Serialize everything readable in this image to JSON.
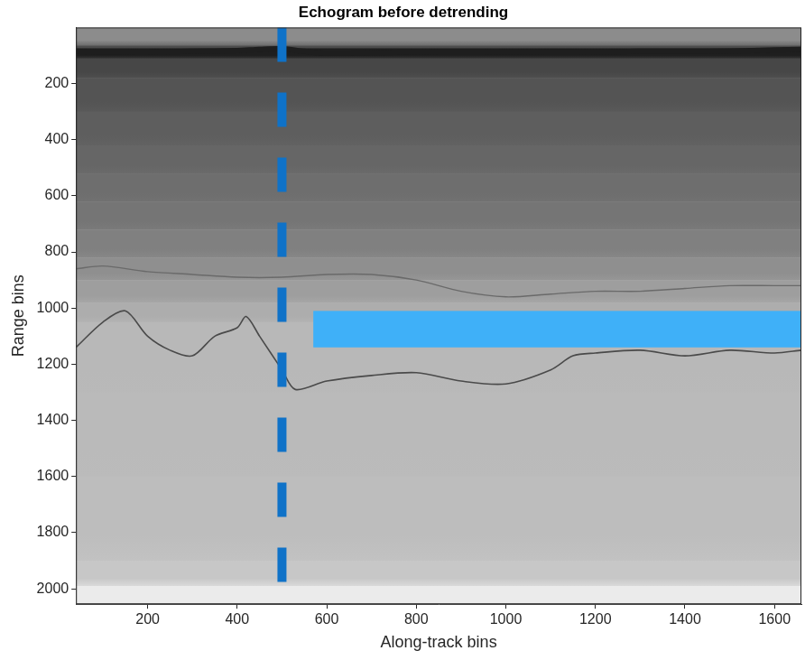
{
  "chart_data": {
    "type": "heatmap",
    "title": "Echogram before detrending",
    "x_label": "Along-track bins",
    "y_label": "Range bins",
    "xlim": [
      40,
      1660
    ],
    "ylim": [
      0,
      2055
    ],
    "xticks": [
      200,
      400,
      600,
      800,
      1000,
      1200,
      1400,
      1600
    ],
    "yticks": [
      200,
      400,
      600,
      800,
      1000,
      1200,
      1400,
      1600,
      1800,
      2000
    ],
    "grid": false,
    "band_edges": [
      0,
      65,
      75,
      110,
      180,
      300,
      420,
      520,
      620,
      720,
      820,
      900,
      980,
      1050,
      1300,
      1600,
      1900,
      1990,
      2055
    ],
    "band_intensity": [
      0.55,
      0.3,
      0.12,
      0.28,
      0.33,
      0.37,
      0.4,
      0.43,
      0.46,
      0.5,
      0.56,
      0.62,
      0.68,
      0.72,
      0.73,
      0.74,
      0.78,
      0.92
    ],
    "series": [
      {
        "color": "#1e1e1e",
        "x": [
          40,
          100,
          200,
          300,
          400,
          450,
          500,
          550,
          600,
          700,
          800,
          900,
          1000,
          1100,
          1200,
          1300,
          1400,
          1500,
          1600,
          1660
        ],
        "values": [
          85,
          88,
          87,
          85,
          82,
          78,
          76,
          85,
          92,
          90,
          88,
          87,
          88,
          86,
          87,
          85,
          85,
          84,
          80,
          78
        ]
      },
      {
        "color": "#6a6a6a",
        "x": [
          40,
          100,
          200,
          300,
          400,
          500,
          600,
          700,
          800,
          900,
          1000,
          1100,
          1200,
          1300,
          1400,
          1500,
          1600,
          1660
        ],
        "values": [
          860,
          850,
          870,
          880,
          890,
          890,
          880,
          880,
          900,
          940,
          960,
          950,
          940,
          940,
          930,
          920,
          920,
          920
        ]
      },
      {
        "color": "#4a4a4a",
        "x": [
          40,
          100,
          150,
          200,
          250,
          300,
          350,
          400,
          420,
          450,
          500,
          530,
          600,
          700,
          800,
          900,
          1000,
          1100,
          1150,
          1200,
          1300,
          1400,
          1500,
          1600,
          1660
        ],
        "values": [
          1140,
          1050,
          1010,
          1100,
          1150,
          1170,
          1100,
          1070,
          1030,
          1100,
          1220,
          1290,
          1260,
          1240,
          1230,
          1260,
          1270,
          1220,
          1170,
          1160,
          1150,
          1170,
          1150,
          1160,
          1150
        ]
      }
    ],
    "shapes": [
      {
        "type": "vline",
        "x": 500,
        "color": "#0f72c8",
        "line_style": "dashed"
      },
      {
        "type": "rect",
        "x": [
          570,
          1660
        ],
        "y": [
          1010,
          1140
        ],
        "color": "#3fb0f8"
      }
    ]
  }
}
